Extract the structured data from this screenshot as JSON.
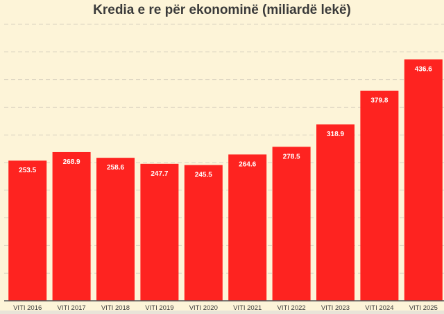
{
  "chart_data": {
    "type": "bar",
    "title": "Kredia e re për ekonominë (miliardë lekë)",
    "xlabel": "",
    "ylabel": "",
    "categories": [
      "VITI 2016",
      "VITI 2017",
      "VITI 2018",
      "VITI 2019",
      "VITI 2020",
      "VITI 2021",
      "VITI 2022",
      "VITI 2023",
      "VITI 2024",
      "VITI 2025"
    ],
    "values": [
      253.5,
      268.9,
      258.6,
      247.7,
      245.5,
      264.6,
      278.5,
      318.9,
      379.8,
      436.6
    ],
    "data_labels": [
      "253.5",
      "268.9",
      "258.6",
      "247.7",
      "245.5",
      "264.6",
      "278.5",
      "318.9",
      "379.8",
      "436.6"
    ],
    "ylim": [
      0,
      500
    ],
    "grid": true,
    "legend": "none",
    "colors": {
      "bar": "#fe2320",
      "background": "#fdf4d8",
      "grid": "#d9d2c0",
      "axis": "#555555",
      "label": "#3a3a3a"
    }
  }
}
